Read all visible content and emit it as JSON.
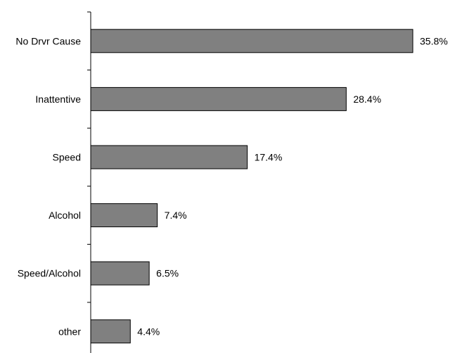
{
  "chart_data": {
    "type": "bar",
    "orientation": "horizontal",
    "categories": [
      "No Drvr Cause",
      "Inattentive",
      "Speed",
      "Alcohol",
      "Speed/Alcohol",
      "other"
    ],
    "values": [
      35.8,
      28.4,
      17.4,
      7.4,
      6.5,
      4.4
    ],
    "value_labels": [
      "35.8%",
      "28.4%",
      "17.4%",
      "7.4%",
      "6.5%",
      "4.4%"
    ],
    "unit": "%",
    "xlim": [
      0,
      40
    ],
    "title": "",
    "xlabel": "",
    "ylabel": "",
    "legend": "none",
    "grid": false,
    "bar_color": "#808080",
    "bar_edge_color": "#000000"
  }
}
